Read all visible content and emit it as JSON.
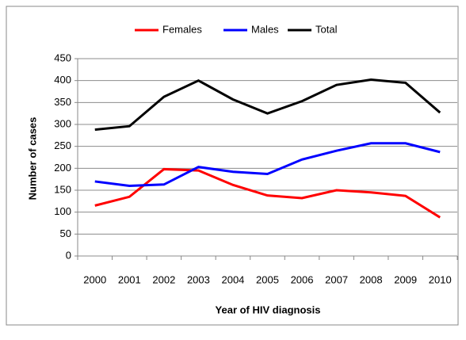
{
  "chart_data": {
    "type": "line",
    "x_label": "Year of HIV diagnosis",
    "y_label": "Number of cases",
    "categories": [
      "2000",
      "2001",
      "2002",
      "2003",
      "2004",
      "2005",
      "2006",
      "2007",
      "2008",
      "2009",
      "2010"
    ],
    "series": [
      {
        "name": "Females",
        "color": "#ff0000",
        "values": [
          115,
          135,
          198,
          195,
          162,
          138,
          132,
          150,
          145,
          137,
          88
        ]
      },
      {
        "name": "Males",
        "color": "#0000ff",
        "values": [
          170,
          160,
          163,
          203,
          192,
          187,
          220,
          240,
          257,
          257,
          237
        ]
      },
      {
        "name": "Total",
        "color": "#000000",
        "values": [
          288,
          296,
          363,
          400,
          357,
          325,
          353,
          390,
          402,
          395,
          327
        ]
      }
    ],
    "ylim": [
      0,
      450
    ],
    "yticks": [
      0,
      50,
      100,
      150,
      200,
      250,
      300,
      350,
      400,
      450
    ],
    "grid": true,
    "legend": "top"
  }
}
